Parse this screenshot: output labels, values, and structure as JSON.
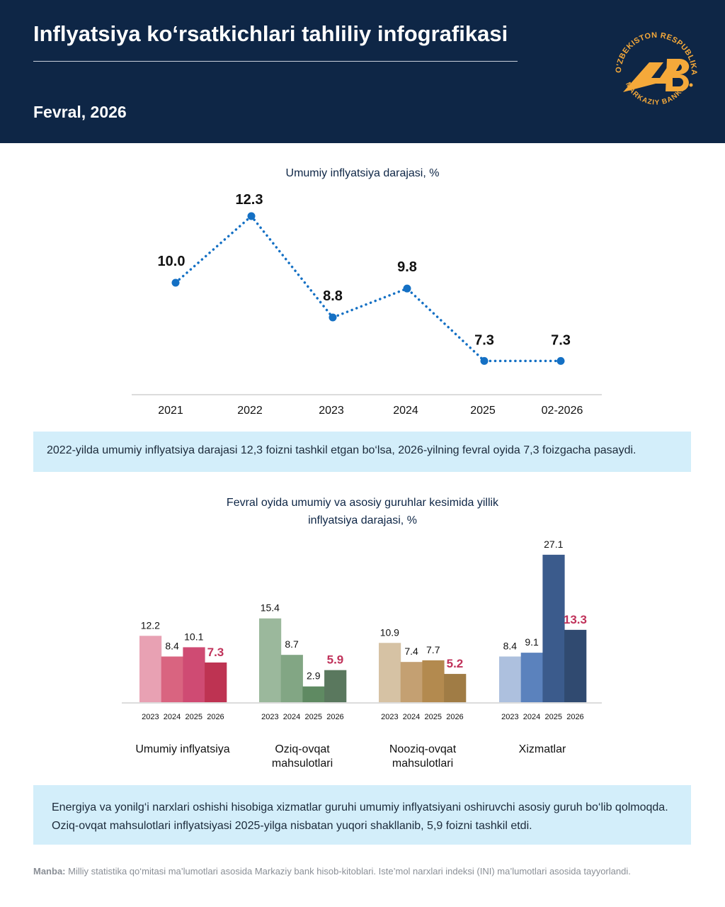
{
  "header": {
    "title": "Inflyatsiya ko‘rsatkichlari tahliliy infografikasi",
    "date": "Fevral, 2026",
    "logo_text": [
      "O'ZBEKISTON RESPUBLIKASI",
      "MARKAZIY BANKI",
      "MB"
    ],
    "bg_color": "#0e2646",
    "logo_color": "#f5a93a"
  },
  "chart_data": [
    {
      "type": "line",
      "title": "Umumiy inflyatsiya darajasi, %",
      "categories": [
        "2021",
        "2022",
        "2023",
        "2024",
        "2025",
        "02-2026"
      ],
      "values": [
        10.0,
        12.3,
        8.8,
        9.8,
        7.3,
        7.3
      ],
      "labels": [
        "10.0",
        "12.3",
        "8.8",
        "9.8",
        "7.3",
        "7.3"
      ],
      "line_style": "dotted",
      "color": "#1470c4",
      "grid": false
    },
    {
      "type": "bar",
      "title": "Fevral oyida umumiy va asosiy guruhlar kesimida yillik inflyatsiya darajasi, %",
      "title_lines": [
        "Fevral oyida umumiy va asosiy guruhlar kesimida yillik",
        "inflyatsiya darajasi, %"
      ],
      "highlight_color": "#c0325a",
      "groups": [
        {
          "name": "Umumiy inflyatsiya",
          "name_lines": [
            "Umumiy inflyatsiya"
          ],
          "years": [
            "2023",
            "2024",
            "2025",
            "2026"
          ],
          "values": [
            12.2,
            8.4,
            10.1,
            7.3
          ],
          "labels": [
            "12.2",
            "8.4",
            "10.1",
            "7.3"
          ],
          "colors": [
            "#e8a1b3",
            "#d96480",
            "#cf4b73",
            "#be3352"
          ]
        },
        {
          "name": "Oziq-ovqat mahsulotlari",
          "name_lines": [
            "Oziq-ovqat",
            "mahsulotlari"
          ],
          "years": [
            "2023",
            "2024",
            "2025",
            "2026"
          ],
          "values": [
            15.4,
            8.7,
            2.9,
            5.9
          ],
          "labels": [
            "15.4",
            "8.7",
            "2.9",
            "5.9"
          ],
          "colors": [
            "#9bb89c",
            "#82a684",
            "#5f8a62",
            "#5a785e"
          ]
        },
        {
          "name": "Nooziq-ovqat mahsulotlari",
          "name_lines": [
            "Nooziq-ovqat",
            "mahsulotlari"
          ],
          "years": [
            "2023",
            "2024",
            "2025",
            "2026"
          ],
          "values": [
            10.9,
            7.4,
            7.7,
            5.2
          ],
          "labels": [
            "10.9",
            "7.4",
            "7.7",
            "5.2"
          ],
          "colors": [
            "#d6c2a4",
            "#c4a072",
            "#b38a4f",
            "#a07c45"
          ]
        },
        {
          "name": "Xizmatlar",
          "name_lines": [
            "Xizmatlar"
          ],
          "years": [
            "2023",
            "2024",
            "2025",
            "2026"
          ],
          "values": [
            8.4,
            9.1,
            27.1,
            13.3
          ],
          "labels": [
            "8.4",
            "9.1",
            "27.1",
            "13.3"
          ],
          "colors": [
            "#adc0de",
            "#5b82bd",
            "#3b5b8c",
            "#304a70"
          ]
        }
      ]
    }
  ],
  "notes": {
    "box1": "2022-yilda umumiy inflyatsiya darajasi 12,3 foizni tashkil etgan bo‘lsa, 2026-yilning fevral oyida 7,3 foizgacha pasaydi.",
    "box2": "Energiya va yonilg‘i narxlari oshishi hisobiga xizmatlar guruhi umumiy inflyatsiyani oshiruvchi asosiy guruh bo‘lib qolmoqda. Oziq-ovqat mahsulotlari inflyatsiyasi 2025-yilga nisbatan yuqori shakllanib, 5,9 foizni tashkil etdi."
  },
  "source": {
    "label": "Manba:",
    "text": "Milliy statistika qo‘mitasi ma’lumotlari asosida Markaziy bank hisob-kitoblari. Iste’mol narxlari indeksi (INI) ma’lumotlari asosida tayyorlandi."
  }
}
